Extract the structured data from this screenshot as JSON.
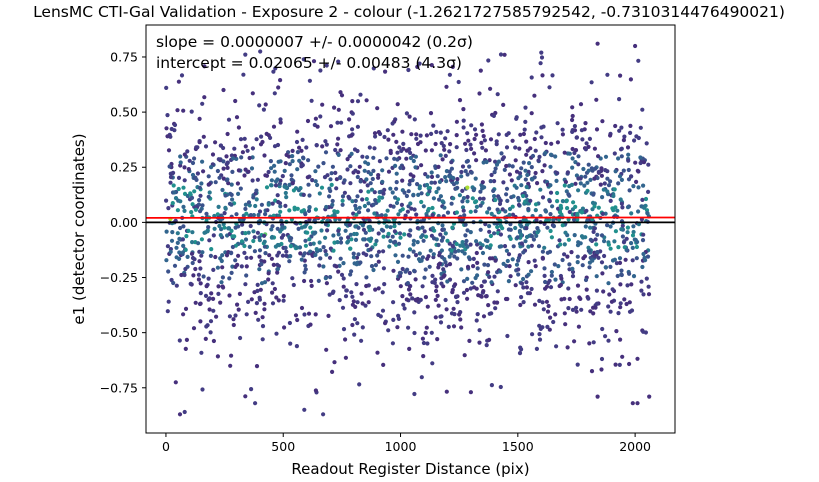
{
  "chart_data": {
    "type": "scatter",
    "title": "LensMC CTI-Gal Validation - Exposure 2 - colour (-1.2621727585792542, -0.7310314476490021)",
    "xlabel": "Readout Register Distance (pix)",
    "ylabel": "e1 (detector coordinates)",
    "xlim": [
      -85,
      2170
    ],
    "ylim": [
      -0.955,
      0.895
    ],
    "xticks": [
      0,
      500,
      1000,
      1500,
      2000
    ],
    "xtick_labels": [
      "0",
      "500",
      "1000",
      "1500",
      "2000"
    ],
    "yticks": [
      -0.75,
      -0.5,
      -0.25,
      0.0,
      0.25,
      0.5,
      0.75
    ],
    "ytick_labels": [
      "−0.75",
      "−0.50",
      "−0.25",
      "0.00",
      "0.25",
      "0.50",
      "0.75"
    ],
    "grid": false,
    "colormap": "viridis",
    "annotation_lines": [
      "slope = 0.0000007 +/- 0.0000042 (0.2σ)",
      "intercept = 0.02065 +/- 0.00483 (4.3σ)"
    ],
    "fit_line": {
      "slope": 7e-07,
      "intercept": 0.02065,
      "color": "#ff0000"
    },
    "zero_line": {
      "y": 0.0,
      "color": "#000000"
    },
    "scatter": {
      "x_range": [
        0,
        2060
      ],
      "n_points": 2400,
      "y_mean": 0.02,
      "y_std": 0.27,
      "notable_points": [
        {
          "x": 1840,
          "y": 0.81
        },
        {
          "x": 2000,
          "y": 0.8
        },
        {
          "x": 1600,
          "y": 0.77
        },
        {
          "x": 590,
          "y": -0.85
        },
        {
          "x": 670,
          "y": -0.87
        },
        {
          "x": 60,
          "y": -0.87
        },
        {
          "x": 80,
          "y": -0.86
        },
        {
          "x": 1840,
          "y": -0.79
        },
        {
          "x": 1990,
          "y": -0.82
        },
        {
          "x": 2010,
          "y": -0.82
        },
        {
          "x": 2060,
          "y": -0.79
        },
        {
          "x": 870,
          "y": -0.02
        },
        {
          "x": 380,
          "y": -0.82
        },
        {
          "x": 1300,
          "y": -0.77
        }
      ]
    },
    "colors": {
      "low": "#3f2b7a",
      "mid": "#2a7f8e",
      "high": "#fde725"
    }
  }
}
